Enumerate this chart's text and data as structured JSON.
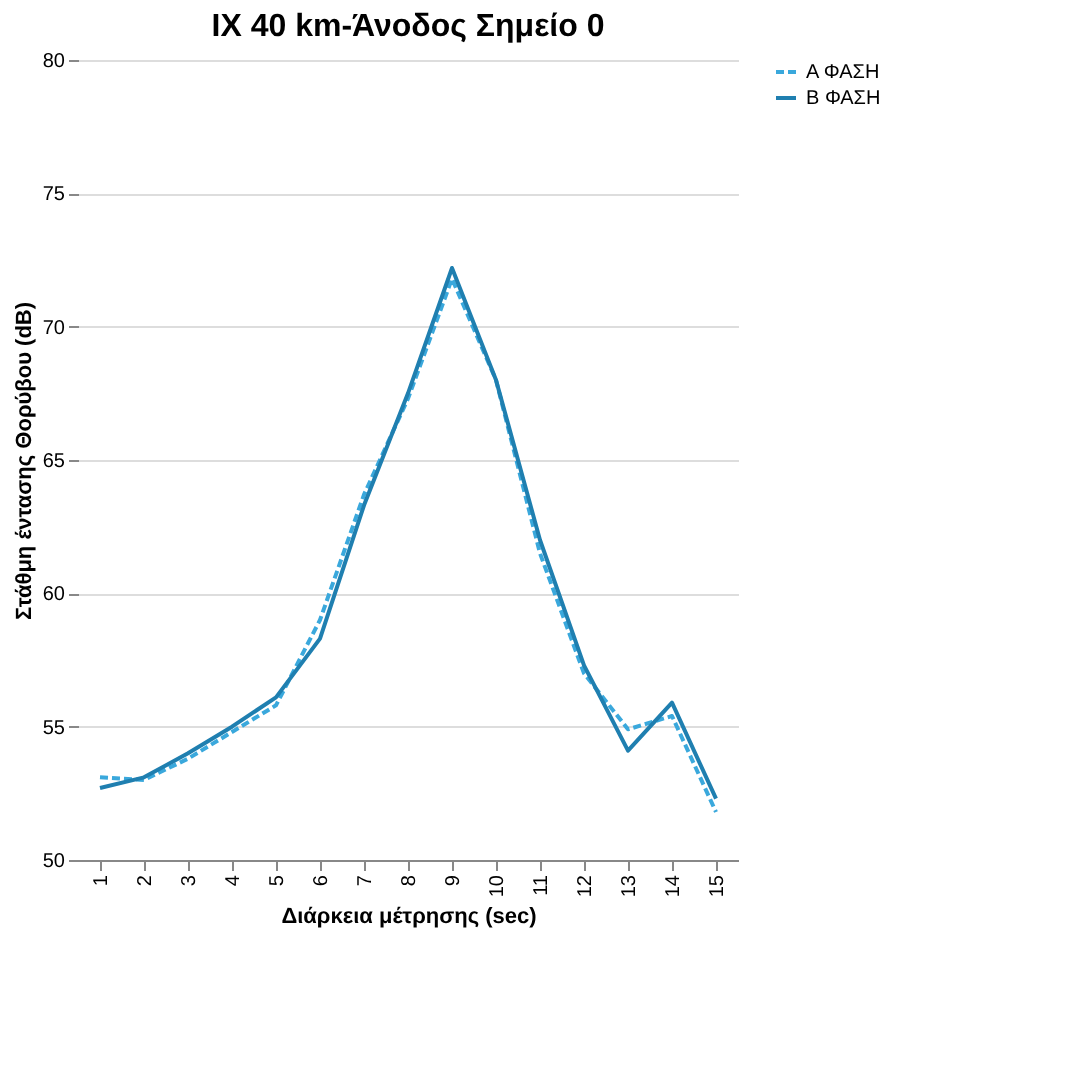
{
  "chart_data": {
    "type": "line",
    "title": "IX 40 km-Άνοδος Σημείο 0",
    "xlabel": "Διάρκεια μέτρησης (sec)",
    "ylabel": "Στάθμη έντασης Θορύβου (dB)",
    "categories": [
      "1",
      "2",
      "3",
      "4",
      "5",
      "6",
      "7",
      "8",
      "9",
      "10",
      "11",
      "12",
      "13",
      "14",
      "15"
    ],
    "series": [
      {
        "name": "Α ΦΑΣΗ",
        "color": "#3aa8dc",
        "line_style": "dashed",
        "values": [
          53.1,
          53.0,
          53.8,
          54.8,
          55.8,
          59.0,
          63.7,
          67.3,
          71.8,
          68.0,
          61.5,
          57.0,
          54.9,
          55.4,
          51.8
        ]
      },
      {
        "name": "Β ΦΑΣΗ",
        "color": "#1f7fb0",
        "line_style": "solid",
        "values": [
          52.7,
          53.1,
          54.0,
          55.0,
          56.1,
          58.3,
          63.3,
          67.5,
          72.2,
          68.0,
          62.0,
          57.3,
          54.1,
          55.9,
          52.3
        ]
      }
    ],
    "ylim": [
      50,
      80
    ],
    "yticks": [
      50,
      55,
      60,
      65,
      70,
      75,
      80
    ],
    "grid": "y",
    "legend": "right",
    "marker": "none"
  }
}
